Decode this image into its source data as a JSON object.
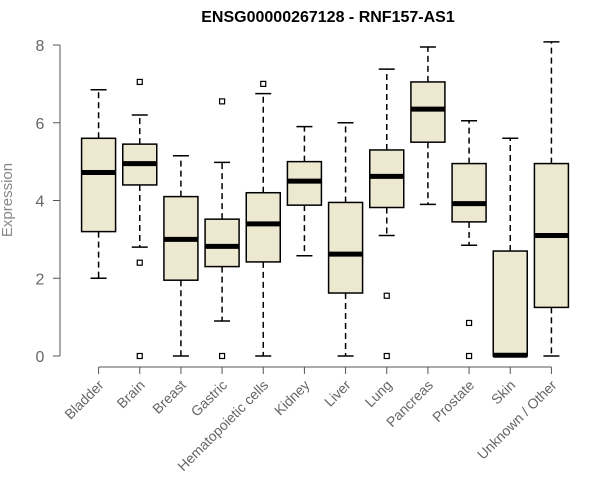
{
  "chart_data": {
    "type": "boxplot",
    "title": "ENSG00000267128 - RNF157-AS1",
    "ylabel": "Expression",
    "ylim": [
      0,
      8
    ],
    "yticks": [
      "0",
      "2",
      "4",
      "6",
      "8"
    ],
    "grid": false,
    "box_color": "#ede8d0",
    "categories": [
      "Bladder",
      "Brain",
      "Breast",
      "Gastric",
      "Hematopoietic cells",
      "Kidney",
      "Liver",
      "Lung",
      "Pancreas",
      "Prostate",
      "Skin",
      "Unknown / Other"
    ],
    "boxes": [
      {
        "min": 2.0,
        "q1": 3.2,
        "median": 4.72,
        "q3": 5.6,
        "max": 6.85,
        "outliers": []
      },
      {
        "min": 2.8,
        "q1": 4.4,
        "median": 4.95,
        "q3": 5.45,
        "max": 6.2,
        "outliers": [
          7.05,
          2.4,
          0.0
        ]
      },
      {
        "min": 0.0,
        "q1": 1.95,
        "median": 3.0,
        "q3": 4.1,
        "max": 5.15,
        "outliers": []
      },
      {
        "min": 0.9,
        "q1": 2.3,
        "median": 2.82,
        "q3": 3.52,
        "max": 4.98,
        "outliers": [
          6.55,
          0.0
        ]
      },
      {
        "min": 0.0,
        "q1": 2.42,
        "median": 3.4,
        "q3": 4.2,
        "max": 6.75,
        "outliers": [
          7.0
        ]
      },
      {
        "min": 2.58,
        "q1": 3.88,
        "median": 4.5,
        "q3": 5.0,
        "max": 5.9,
        "outliers": []
      },
      {
        "min": 0.0,
        "q1": 1.62,
        "median": 2.62,
        "q3": 3.95,
        "max": 6.0,
        "outliers": []
      },
      {
        "min": 3.1,
        "q1": 3.82,
        "median": 4.62,
        "q3": 5.3,
        "max": 7.38,
        "outliers": [
          1.55,
          0.0
        ]
      },
      {
        "min": 3.9,
        "q1": 5.5,
        "median": 6.35,
        "q3": 7.05,
        "max": 7.95,
        "outliers": []
      },
      {
        "min": 2.85,
        "q1": 3.45,
        "median": 3.92,
        "q3": 4.95,
        "max": 6.05,
        "outliers": [
          0.85,
          0.0
        ]
      },
      {
        "min": 0.0,
        "q1": 0.0,
        "median": 0.02,
        "q3": 2.7,
        "max": 5.6,
        "outliers": []
      },
      {
        "min": 0.0,
        "q1": 1.25,
        "median": 3.1,
        "q3": 4.95,
        "max": 8.08,
        "outliers": []
      }
    ]
  }
}
